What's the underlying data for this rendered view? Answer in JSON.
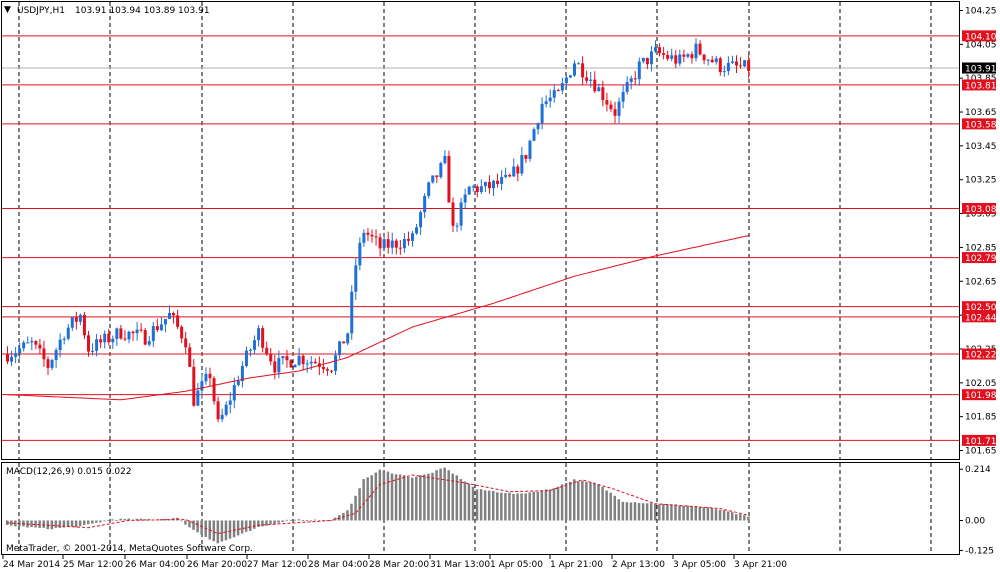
{
  "header": {
    "marker": "▼",
    "symbol_label": "USDJPY,H1",
    "ohlc_text": "103.91 103.94 103.89 103.91"
  },
  "copyright": "MetaTrader, © 2001-2014, MetaQuotes Software Corp.",
  "colors": {
    "bull": "#1e6fd6",
    "bear": "#e0101e",
    "level_line": "#e0101e",
    "ma_line": "#e0101e",
    "histogram": "#808080",
    "signal_line": "#e0101e",
    "grid": "#000000",
    "current_price_bg": "#000000"
  },
  "chart_data": [
    {
      "type": "candlestick",
      "symbol": "USDJPY",
      "timeframe": "H1",
      "ylim": [
        101.6,
        104.3
      ],
      "y_ticks": [
        104.25,
        104.05,
        103.85,
        103.65,
        103.45,
        103.25,
        103.05,
        102.85,
        102.65,
        102.45,
        102.25,
        102.05,
        101.85,
        101.65
      ],
      "y_tick_labels": [
        "104.25",
        "104.05",
        "103.85",
        "103.65",
        "103.45",
        "103.25",
        "103.05",
        "102.85",
        "102.65",
        "102.45",
        "102.25",
        "102.05",
        "101.85",
        "101.65"
      ],
      "x_labels": [
        "24 Mar 2014",
        "25 Mar 12:00",
        "26 Mar 04:00",
        "26 Mar 20:00",
        "27 Mar 12:00",
        "28 Mar 04:00",
        "28 Mar 20:00",
        "31 Mar 13:00",
        "1 Apr 05:00",
        "1 Apr 21:00",
        "2 Apr 13:00",
        "3 Apr 05:00",
        "3 Apr 21:00"
      ],
      "grid_vertical": true,
      "bars_total": 186,
      "price_path": [
        [
          0,
          102.22
        ],
        [
          6,
          102.28
        ],
        [
          10,
          102.15
        ],
        [
          14,
          102.35
        ],
        [
          18,
          102.45
        ],
        [
          20,
          102.25
        ],
        [
          28,
          102.35
        ],
        [
          34,
          102.32
        ],
        [
          40,
          102.45
        ],
        [
          44,
          102.3
        ],
        [
          46,
          101.95
        ],
        [
          50,
          102.1
        ],
        [
          52,
          101.8
        ],
        [
          54,
          101.9
        ],
        [
          58,
          102.15
        ],
        [
          62,
          102.35
        ],
        [
          66,
          102.15
        ],
        [
          72,
          102.2
        ],
        [
          80,
          102.15
        ],
        [
          84,
          102.35
        ],
        [
          86,
          102.75
        ],
        [
          88,
          102.95
        ],
        [
          92,
          102.85
        ],
        [
          100,
          102.9
        ],
        [
          104,
          103.2
        ],
        [
          108,
          103.35
        ],
        [
          110,
          102.95
        ],
        [
          114,
          103.2
        ],
        [
          118,
          103.2
        ],
        [
          124,
          103.25
        ],
        [
          128,
          103.4
        ],
        [
          132,
          103.7
        ],
        [
          136,
          103.75
        ],
        [
          140,
          103.95
        ],
        [
          144,
          103.85
        ],
        [
          150,
          103.65
        ],
        [
          156,
          103.92
        ],
        [
          160,
          104.0
        ],
        [
          166,
          103.95
        ],
        [
          170,
          104.02
        ],
        [
          176,
          103.92
        ],
        [
          183,
          103.91
        ]
      ],
      "ma_path": [
        [
          0,
          101.98
        ],
        [
          28,
          101.95
        ],
        [
          44,
          102.0
        ],
        [
          60,
          102.08
        ],
        [
          72,
          102.12
        ],
        [
          84,
          102.2
        ],
        [
          100,
          102.38
        ],
        [
          120,
          102.52
        ],
        [
          140,
          102.68
        ],
        [
          160,
          102.8
        ],
        [
          183,
          102.92
        ]
      ],
      "levels": [
        {
          "value": 104.1,
          "label": "104.10"
        },
        {
          "value": 103.81,
          "label": "103.81"
        },
        {
          "value": 103.58,
          "label": "103.58"
        },
        {
          "value": 103.08,
          "label": "103.08"
        },
        {
          "value": 102.79,
          "label": "102.79"
        },
        {
          "value": 102.5,
          "label": "102.50"
        },
        {
          "value": 102.44,
          "label": "102.44"
        },
        {
          "value": 102.22,
          "label": "102.22"
        },
        {
          "value": 101.98,
          "label": "101.98"
        },
        {
          "value": 101.71,
          "label": "101.71"
        }
      ],
      "current_price": {
        "value": 103.91,
        "label": "103.91"
      }
    },
    {
      "type": "histogram",
      "indicator_label": "MACD(12,26,9) 0.015 0.022",
      "ylim": [
        -0.14,
        0.24
      ],
      "y_ticks": [
        0.214,
        0.0,
        -0.125
      ],
      "y_tick_labels": [
        "0.214",
        "0.00",
        "-0.125"
      ],
      "macd_path": [
        [
          0,
          -0.02
        ],
        [
          10,
          -0.035
        ],
        [
          18,
          -0.025
        ],
        [
          26,
          0.005
        ],
        [
          36,
          0.005
        ],
        [
          42,
          0.01
        ],
        [
          46,
          -0.04
        ],
        [
          52,
          -0.095
        ],
        [
          56,
          -0.07
        ],
        [
          62,
          -0.03
        ],
        [
          70,
          0.005
        ],
        [
          80,
          0.0
        ],
        [
          84,
          0.04
        ],
        [
          88,
          0.17
        ],
        [
          92,
          0.21
        ],
        [
          100,
          0.18
        ],
        [
          104,
          0.195
        ],
        [
          108,
          0.22
        ],
        [
          116,
          0.13
        ],
        [
          126,
          0.11
        ],
        [
          134,
          0.13
        ],
        [
          140,
          0.17
        ],
        [
          146,
          0.15
        ],
        [
          152,
          0.08
        ],
        [
          160,
          0.07
        ],
        [
          170,
          0.06
        ],
        [
          176,
          0.045
        ],
        [
          183,
          0.015
        ]
      ],
      "signal_path": [
        [
          0,
          -0.01
        ],
        [
          20,
          -0.03
        ],
        [
          30,
          0.0
        ],
        [
          44,
          0.005
        ],
        [
          52,
          -0.055
        ],
        [
          62,
          -0.02
        ],
        [
          80,
          0.0
        ],
        [
          86,
          0.03
        ],
        [
          92,
          0.15
        ],
        [
          100,
          0.19
        ],
        [
          112,
          0.16
        ],
        [
          124,
          0.12
        ],
        [
          134,
          0.125
        ],
        [
          142,
          0.17
        ],
        [
          150,
          0.13
        ],
        [
          160,
          0.07
        ],
        [
          176,
          0.05
        ],
        [
          183,
          0.022
        ]
      ]
    }
  ]
}
